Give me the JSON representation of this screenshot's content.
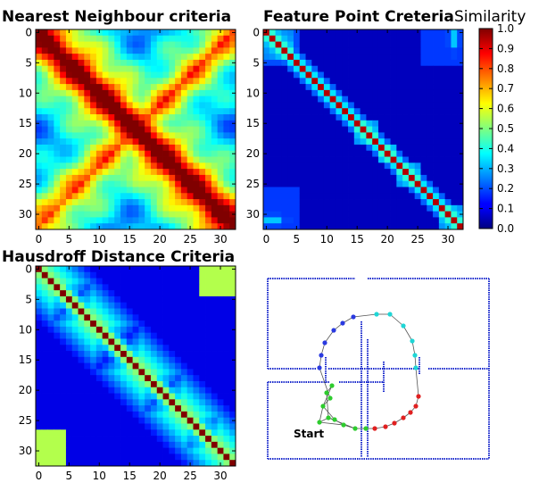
{
  "chart_data": [
    {
      "type": "heatmap",
      "panel": "nn",
      "title": "Nearest Neighbour criteria",
      "size": 33,
      "xticks": [
        0,
        5,
        10,
        15,
        20,
        25,
        30
      ],
      "yticks": [
        0,
        5,
        10,
        15,
        20,
        25,
        30
      ],
      "tick_labels": [
        "0",
        "5",
        "10",
        "15",
        "20",
        "25",
        "30"
      ],
      "value_range": [
        0,
        1
      ],
      "colormap": "jet",
      "pattern": "broad high-similarity diagonal band with a high anti-diagonal region"
    },
    {
      "type": "heatmap",
      "panel": "fp",
      "title": "Feature Point Creteria",
      "size": 33,
      "xticks": [
        0,
        5,
        10,
        15,
        20,
        25,
        30
      ],
      "yticks": [
        0,
        5,
        10,
        15,
        20,
        25,
        30
      ],
      "tick_labels": [
        "0",
        "5",
        "10",
        "15",
        "20",
        "25",
        "30"
      ],
      "value_range": [
        0,
        1
      ],
      "colormap": "jet",
      "pattern": "narrow diagonal with local blocks and corner loop-closure blocks"
    },
    {
      "type": "heatmap",
      "panel": "hd",
      "title": "Hausdroff Distance Criteria",
      "size": 33,
      "xticks": [
        0,
        5,
        10,
        15,
        20,
        25,
        30
      ],
      "yticks": [
        0,
        5,
        10,
        15,
        20,
        25,
        30
      ],
      "tick_labels": [
        "0",
        "5",
        "10",
        "15",
        "20",
        "25",
        "30"
      ],
      "value_range": [
        0,
        1
      ],
      "colormap": "jet",
      "pattern": "diamond-shaped blocks along diagonal with corner blocks"
    }
  ],
  "colorbar": {
    "title": "Similarity",
    "ticks": [
      "0.0",
      "0.1",
      "0.2",
      "0.3",
      "0.4",
      "0.5",
      "0.6",
      "0.7",
      "0.8",
      "0.9",
      "1.0"
    ],
    "range": [
      0,
      1
    ],
    "colormap": "jet"
  },
  "map": {
    "start_label": "Start",
    "wall_color": "#1a2acc",
    "path_colors": [
      "#2ecc2e",
      "#e02020",
      "#1fd6d6",
      "#2a3ae0"
    ]
  }
}
